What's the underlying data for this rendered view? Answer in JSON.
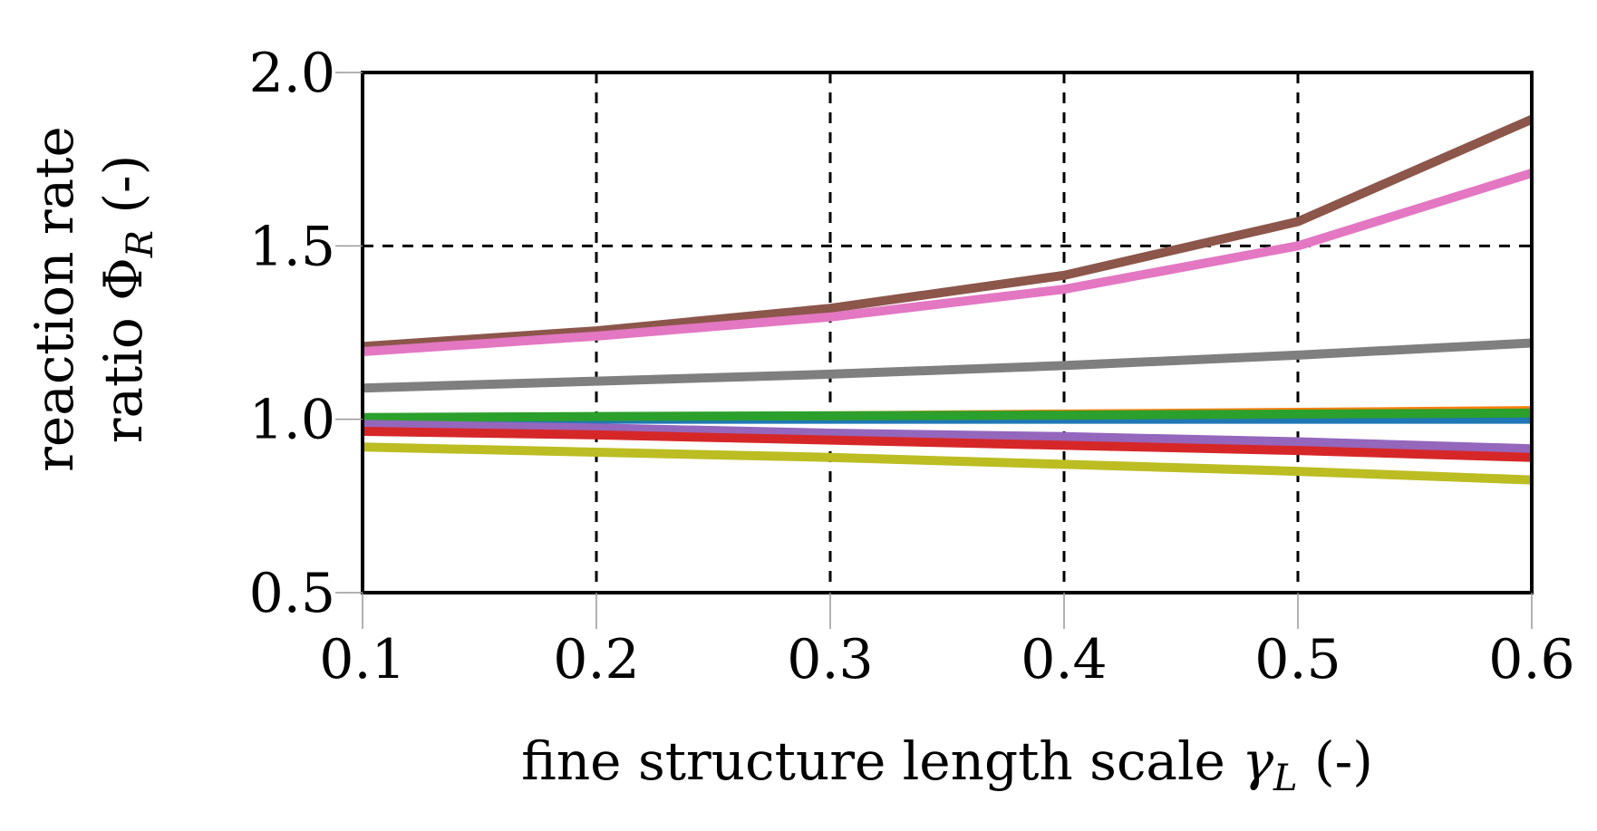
{
  "chart_data": {
    "type": "line",
    "title": "",
    "xlabel": {
      "prefix": "fine structure length scale ",
      "symbol": "γ",
      "subscript": "L",
      "suffix": " (-)"
    },
    "ylabel": {
      "line1": "reaction rate",
      "line2_prefix": "ratio ",
      "symbol": "Φ",
      "subscript": "R",
      "suffix": " (-)"
    },
    "xlim": [
      0.1,
      0.6
    ],
    "ylim": [
      0.5,
      2.0
    ],
    "x_ticks": [
      0.1,
      0.2,
      0.3,
      0.4,
      0.5,
      0.6
    ],
    "x_tick_labels": [
      "0.1",
      "0.2",
      "0.3",
      "0.4",
      "0.5",
      "0.6"
    ],
    "y_ticks": [
      0.5,
      1.0,
      1.5,
      2.0
    ],
    "y_tick_labels": [
      "0.5",
      "1.0",
      "1.5",
      "2.0"
    ],
    "grid": {
      "x": [
        0.2,
        0.3,
        0.4,
        0.5
      ],
      "y": [
        1.5
      ],
      "style": "dashed"
    },
    "x": [
      0.1,
      0.2,
      0.3,
      0.4,
      0.5,
      0.6
    ],
    "series": [
      {
        "name": "brown",
        "color": "#8c564b",
        "values": [
          1.21,
          1.255,
          1.32,
          1.415,
          1.57,
          1.865
        ]
      },
      {
        "name": "pink",
        "color": "#e377c2",
        "values": [
          1.195,
          1.24,
          1.295,
          1.375,
          1.5,
          1.71
        ]
      },
      {
        "name": "gray",
        "color": "#7f7f7f",
        "values": [
          1.09,
          1.11,
          1.13,
          1.155,
          1.185,
          1.22
        ]
      },
      {
        "name": "orange",
        "color": "#ff7f0e",
        "values": [
          1.0,
          1.005,
          1.01,
          1.015,
          1.02,
          1.025
        ]
      },
      {
        "name": "blue",
        "color": "#1f77b4",
        "values": [
          1.0,
          1.0,
          1.0,
          1.0,
          1.0,
          1.0
        ]
      },
      {
        "name": "green",
        "color": "#2ca02c",
        "values": [
          1.005,
          1.008,
          1.01,
          1.012,
          1.015,
          1.018
        ]
      },
      {
        "name": "purple",
        "color": "#9467bd",
        "values": [
          0.985,
          0.975,
          0.96,
          0.95,
          0.935,
          0.915
        ]
      },
      {
        "name": "red",
        "color": "#d62728",
        "values": [
          0.965,
          0.955,
          0.94,
          0.925,
          0.91,
          0.89
        ]
      },
      {
        "name": "olive",
        "color": "#bcbd22",
        "values": [
          0.92,
          0.905,
          0.89,
          0.87,
          0.85,
          0.825
        ]
      }
    ]
  }
}
